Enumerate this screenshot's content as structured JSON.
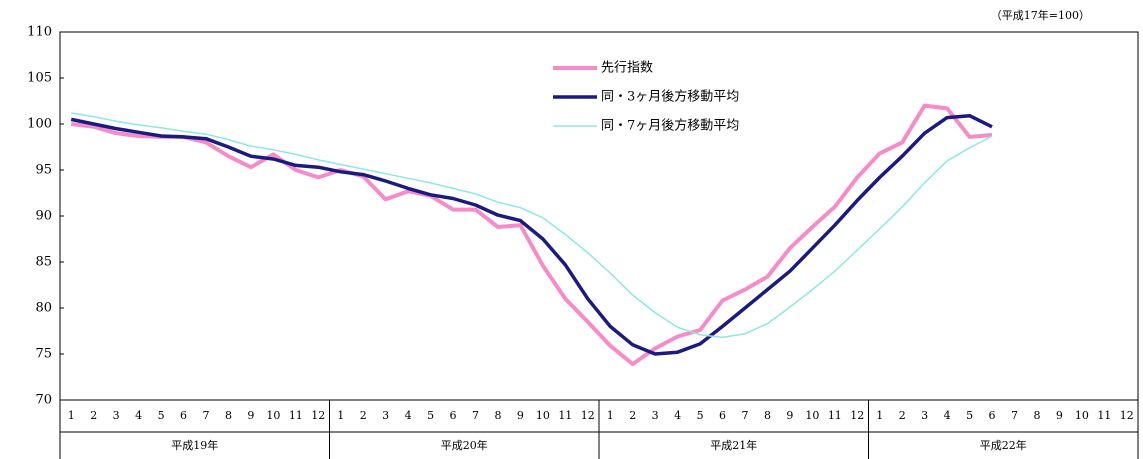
{
  "chart_data": {
    "type": "line",
    "annotation": "（平成17年=100）",
    "categories": [
      "1",
      "2",
      "3",
      "4",
      "5",
      "6",
      "7",
      "8",
      "9",
      "10",
      "11",
      "12",
      "1",
      "2",
      "3",
      "4",
      "5",
      "6",
      "7",
      "8",
      "9",
      "10",
      "11",
      "12",
      "1",
      "2",
      "3",
      "4",
      "5",
      "6",
      "7",
      "8",
      "9",
      "10",
      "11",
      "12",
      "1",
      "2",
      "3",
      "4",
      "5",
      "6",
      "7",
      "8",
      "9",
      "10",
      "11",
      "12"
    ],
    "groups": [
      "平成19年",
      "平成20年",
      "平成21年",
      "平成22年"
    ],
    "series": [
      {
        "name": "先行指数",
        "color": "#f58cc8",
        "width": 4,
        "values": [
          100.0,
          99.7,
          99.0,
          98.7,
          98.6,
          98.6,
          98.0,
          96.5,
          95.3,
          96.7,
          95.0,
          94.2,
          95.0,
          94.3,
          91.8,
          92.7,
          92.2,
          90.7,
          90.7,
          88.8,
          89.0,
          84.6,
          81.0,
          78.5,
          75.9,
          73.9,
          75.6,
          76.9,
          77.6,
          80.8,
          82.0,
          83.4,
          86.5,
          88.8,
          91.0,
          94.2,
          96.8,
          98.0,
          102.0,
          101.7,
          98.6,
          98.8,
          null,
          null,
          null,
          null,
          null,
          null
        ]
      },
      {
        "name": "同・3ヶ月後方移動平均",
        "color": "#1a1a80",
        "width": 3.5,
        "values": [
          100.5,
          100.0,
          99.5,
          99.1,
          98.7,
          98.6,
          98.4,
          97.5,
          96.5,
          96.2,
          95.5,
          95.3,
          94.8,
          94.5,
          93.8,
          93.0,
          92.3,
          91.9,
          91.2,
          90.1,
          89.5,
          87.5,
          84.7,
          81.0,
          78.0,
          76.0,
          75.0,
          75.2,
          76.1,
          78.0,
          80.0,
          82.0,
          84.0,
          86.5,
          89.0,
          91.7,
          94.2,
          96.5,
          99.0,
          100.7,
          100.9,
          99.7,
          null,
          null,
          null,
          null,
          null,
          null
        ]
      },
      {
        "name": "同・7ヶ月後方移動平均",
        "color": "#8fe6e6",
        "width": 1.5,
        "values": [
          101.2,
          100.8,
          100.3,
          99.9,
          99.6,
          99.2,
          98.9,
          98.3,
          97.6,
          97.2,
          96.7,
          96.1,
          95.6,
          95.1,
          94.6,
          94.1,
          93.6,
          93.0,
          92.4,
          91.5,
          90.9,
          89.8,
          88.0,
          86.0,
          83.8,
          81.4,
          79.5,
          77.9,
          77.1,
          76.8,
          77.2,
          78.3,
          80.1,
          82.0,
          84.0,
          86.3,
          88.6,
          91.0,
          93.6,
          96.0,
          97.4,
          98.7,
          null,
          null,
          null,
          null,
          null,
          null
        ]
      }
    ],
    "ylim": [
      70,
      110
    ],
    "yticks": [
      70,
      75,
      80,
      85,
      90,
      95,
      100,
      105,
      110
    ],
    "grid": false,
    "legend": "top"
  }
}
